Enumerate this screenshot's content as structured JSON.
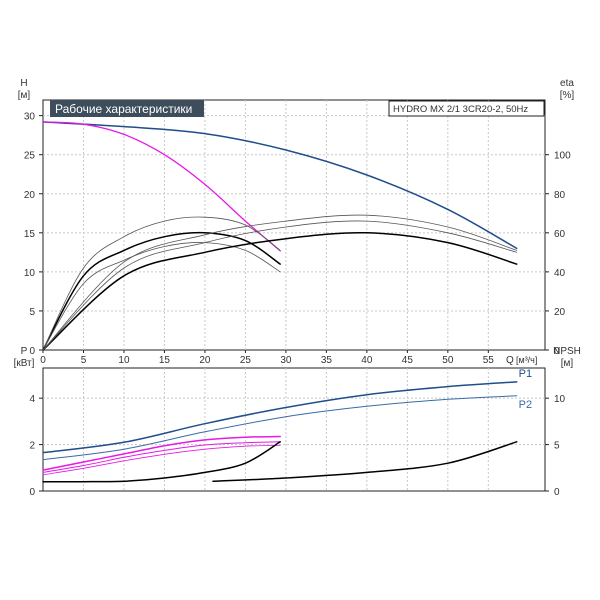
{
  "chart_data": [
    {
      "type": "line",
      "title": "Рабочие характеристики",
      "subtitle": "HYDRO MX 2/1 3CR20-2, 50Hz",
      "xlabel": "Q [м³/ч]",
      "x_name": "Q",
      "x_unit": "[м³/ч]",
      "ylabel": "H [м]",
      "y_name": "H",
      "y_unit": "[м]",
      "y2label": "eta [%]",
      "y2_name": "eta",
      "y2_unit": "[%]",
      "xlim": [
        0,
        62
      ],
      "ylim": [
        0,
        32
      ],
      "y2lim": [
        0,
        128
      ],
      "x_ticks": [
        0,
        5,
        10,
        15,
        20,
        25,
        30,
        35,
        40,
        45,
        50,
        55
      ],
      "y_ticks": [
        0,
        5,
        10,
        15,
        20,
        25,
        30
      ],
      "y2_ticks": [
        0,
        20,
        40,
        60,
        80,
        100
      ],
      "grid": true,
      "series": [
        {
          "color": "#1f4e8c",
          "width": 1.5,
          "axis": "y",
          "x": [
            0,
            10,
            20,
            30,
            40,
            50,
            58.5
          ],
          "values": [
            29.2,
            28.6,
            27.7,
            25.6,
            22.4,
            18.0,
            13.0
          ]
        },
        {
          "color": "#e619e6",
          "width": 1.3,
          "axis": "y",
          "x": [
            0,
            5,
            10,
            15,
            20,
            25,
            29.3
          ],
          "values": [
            29.2,
            28.9,
            27.6,
            25.0,
            21.2,
            16.5,
            12.7
          ]
        },
        {
          "color": "#000000",
          "width": 1.5,
          "axis": "y2",
          "x": [
            0,
            5,
            10,
            15,
            20,
            25,
            29.3
          ],
          "values": [
            0,
            38,
            51,
            58,
            60,
            56,
            44
          ]
        },
        {
          "color": "#555555",
          "width": 0.8,
          "axis": "y2",
          "x": [
            0,
            5,
            10,
            15,
            20,
            25,
            29.3
          ],
          "values": [
            0,
            42,
            58,
            66,
            68,
            64,
            51
          ]
        },
        {
          "color": "#555555",
          "width": 0.8,
          "axis": "y2",
          "x": [
            0,
            5,
            10,
            15,
            20,
            25,
            29.3
          ],
          "values": [
            0,
            34,
            46,
            53,
            55,
            51,
            40
          ]
        },
        {
          "color": "#000000",
          "width": 1.5,
          "axis": "y2",
          "x": [
            0,
            10,
            20,
            30,
            40,
            50,
            58.5
          ],
          "values": [
            0,
            38,
            50,
            57,
            60,
            55,
            44
          ]
        },
        {
          "color": "#555555",
          "width": 0.8,
          "axis": "y2",
          "x": [
            0,
            10,
            20,
            30,
            40,
            50,
            58.5
          ],
          "values": [
            0,
            45,
            59,
            66,
            69,
            63,
            51
          ]
        },
        {
          "color": "#555555",
          "width": 0.8,
          "axis": "y2",
          "x": [
            0,
            10,
            20,
            30,
            40,
            50,
            58.5
          ],
          "values": [
            0,
            42,
            55,
            63,
            66,
            60,
            50
          ]
        }
      ]
    },
    {
      "type": "line",
      "ylabel": "P [кВт]",
      "y_name": "P",
      "y_unit": "[кВт]",
      "y2label": "NPSH [м]",
      "y2_name": "NPSH",
      "y2_unit": "[м]",
      "xlim": [
        0,
        62
      ],
      "ylim": [
        0,
        5.3
      ],
      "y2lim": [
        0,
        13.25
      ],
      "x_ticks": [
        0,
        5,
        10,
        15,
        20,
        25,
        30,
        35,
        40,
        45,
        50,
        55
      ],
      "y_ticks": [
        0,
        2,
        4
      ],
      "y2_ticks": [
        0,
        5,
        10
      ],
      "grid": true,
      "series": [
        {
          "name": "P1",
          "color": "#1f4e8c",
          "width": 1.5,
          "axis": "y",
          "x": [
            0,
            10,
            20,
            30,
            40,
            50,
            58.5
          ],
          "values": [
            1.65,
            2.1,
            2.9,
            3.6,
            4.15,
            4.5,
            4.7
          ]
        },
        {
          "name": "P2",
          "color": "#3a6aa8",
          "width": 1.0,
          "axis": "y",
          "x": [
            0,
            10,
            20,
            30,
            40,
            50,
            58.5
          ],
          "values": [
            1.35,
            1.8,
            2.55,
            3.2,
            3.65,
            3.95,
            4.1
          ]
        },
        {
          "color": "#e619e6",
          "width": 1.5,
          "axis": "y",
          "x": [
            0,
            5,
            10,
            15,
            20,
            25,
            29.3
          ],
          "values": [
            0.9,
            1.25,
            1.6,
            1.95,
            2.2,
            2.32,
            2.35
          ]
        },
        {
          "color": "#e619e6",
          "width": 1.0,
          "axis": "y",
          "x": [
            0,
            5,
            10,
            15,
            20,
            25,
            29.3
          ],
          "values": [
            0.8,
            1.1,
            1.45,
            1.75,
            1.98,
            2.08,
            2.12
          ]
        },
        {
          "color": "#e619e6",
          "width": 0.8,
          "axis": "y",
          "x": [
            0,
            5,
            10,
            15,
            20,
            25,
            29.3
          ],
          "values": [
            0.7,
            0.98,
            1.3,
            1.58,
            1.8,
            1.93,
            1.97
          ]
        },
        {
          "color": "#000000",
          "width": 1.5,
          "axis": "y2",
          "x": [
            0,
            5,
            10,
            15,
            20,
            25,
            29.3
          ],
          "values": [
            1.0,
            1.0,
            1.05,
            1.4,
            2.0,
            3.0,
            5.3
          ]
        },
        {
          "color": "#000000",
          "width": 1.5,
          "axis": "y2",
          "x": [
            21,
            30,
            40,
            50,
            58.5
          ],
          "values": [
            1.05,
            1.4,
            2.0,
            3.0,
            5.3
          ]
        }
      ]
    }
  ]
}
